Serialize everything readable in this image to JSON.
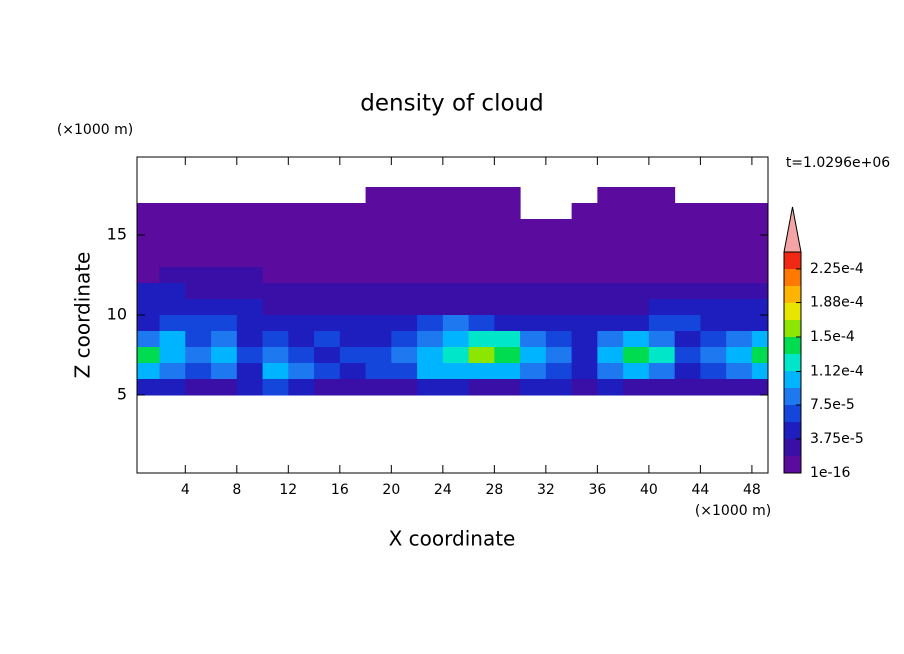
{
  "chart_data": {
    "type": "contour",
    "title": "density of cloud",
    "x_label": "X coordinate",
    "y_label": "Z coordinate",
    "x_unit_label": "(×1000 m)",
    "y_unit_label": "(×1000 m)",
    "annotation": "t=1.0296e+06",
    "xlim": [
      0.25,
      49.25
    ],
    "ylim": [
      0.125,
      19.875
    ],
    "xticks": [
      4,
      8,
      12,
      16,
      20,
      24,
      28,
      32,
      36,
      40,
      44,
      48
    ],
    "yticks": [
      5,
      10,
      15
    ],
    "x": [
      1,
      3,
      5,
      7,
      9,
      11,
      13,
      15,
      17,
      19,
      21,
      23,
      25,
      27,
      29,
      31,
      33,
      35,
      37,
      39,
      41,
      43,
      45,
      47,
      49
    ],
    "z": [
      17.5,
      16.5,
      15.5,
      14.5,
      13.5,
      12.5,
      11.5,
      10.5,
      9.5,
      8.5,
      7.5,
      6.5,
      5.5
    ],
    "values": [
      [
        null,
        null,
        null,
        null,
        null,
        null,
        null,
        null,
        null,
        5e-06,
        5e-06,
        5e-06,
        5e-06,
        5e-06,
        5e-06,
        null,
        null,
        null,
        5e-06,
        5e-06,
        5e-06,
        null,
        null,
        null,
        null
      ],
      [
        5e-06,
        5e-06,
        5e-06,
        5e-06,
        5e-06,
        5e-06,
        5e-06,
        5e-06,
        5e-06,
        5e-06,
        5e-06,
        5e-06,
        5e-06,
        5e-06,
        5e-06,
        null,
        null,
        5e-06,
        5e-06,
        5e-06,
        5e-06,
        5e-06,
        5e-06,
        5e-06,
        5e-06
      ],
      [
        5e-06,
        5e-06,
        5e-06,
        5e-06,
        5e-06,
        5e-06,
        5e-06,
        5e-06,
        5e-06,
        5e-06,
        5e-06,
        5e-06,
        5e-06,
        5e-06,
        5e-06,
        5e-06,
        5e-06,
        5e-06,
        5e-06,
        5e-06,
        5e-06,
        5e-06,
        5e-06,
        5e-06,
        5e-06
      ],
      [
        5e-06,
        5e-06,
        5e-06,
        5e-06,
        5e-06,
        5e-06,
        5e-06,
        5e-06,
        5e-06,
        5e-06,
        5e-06,
        5e-06,
        5e-06,
        5e-06,
        5e-06,
        5e-06,
        5e-06,
        5e-06,
        5e-06,
        5e-06,
        5e-06,
        5e-06,
        5e-06,
        5e-06,
        5e-06
      ],
      [
        5e-06,
        5e-06,
        5e-06,
        5e-06,
        5e-06,
        5e-06,
        5e-06,
        5e-06,
        5e-06,
        5e-06,
        5e-06,
        5e-06,
        5e-06,
        5e-06,
        5e-06,
        5e-06,
        5e-06,
        5e-06,
        5e-06,
        5e-06,
        5e-06,
        5e-06,
        5e-06,
        5e-06,
        5e-06
      ],
      [
        5e-06,
        2.5e-05,
        2.5e-05,
        2.5e-05,
        2.5e-05,
        5e-06,
        5e-06,
        5e-06,
        5e-06,
        5e-06,
        5e-06,
        5e-06,
        5e-06,
        5e-06,
        5e-06,
        5e-06,
        5e-06,
        5e-06,
        5e-06,
        5e-06,
        5e-06,
        5e-06,
        5e-06,
        5e-06,
        5e-06
      ],
      [
        4.5e-05,
        4.5e-05,
        2.5e-05,
        2.5e-05,
        2.5e-05,
        2.5e-05,
        2.5e-05,
        2.5e-05,
        2.5e-05,
        2.5e-05,
        2.5e-05,
        2.5e-05,
        2.5e-05,
        2.5e-05,
        2.5e-05,
        2.5e-05,
        2.5e-05,
        2.5e-05,
        2.5e-05,
        2.5e-05,
        2.5e-05,
        2.5e-05,
        2.5e-05,
        2.5e-05,
        2.5e-05
      ],
      [
        4.5e-05,
        4.5e-05,
        4.5e-05,
        4.5e-05,
        4.5e-05,
        2.5e-05,
        2.5e-05,
        2.5e-05,
        2.5e-05,
        2.5e-05,
        2.5e-05,
        2.5e-05,
        2.5e-05,
        2.5e-05,
        2.5e-05,
        2.5e-05,
        2.5e-05,
        2.5e-05,
        2.5e-05,
        2.5e-05,
        4.5e-05,
        4.5e-05,
        4.5e-05,
        4.5e-05,
        4.5e-05
      ],
      [
        4.5e-05,
        6e-05,
        6e-05,
        6e-05,
        4.5e-05,
        4.5e-05,
        4.5e-05,
        4.5e-05,
        4.5e-05,
        4.5e-05,
        4.5e-05,
        6e-05,
        8e-05,
        6e-05,
        4.5e-05,
        4.5e-05,
        4.5e-05,
        4.5e-05,
        4.5e-05,
        4.5e-05,
        6e-05,
        6e-05,
        4.5e-05,
        4.5e-05,
        4.5e-05
      ],
      [
        8e-05,
        0.0001,
        6e-05,
        8e-05,
        4.5e-05,
        6e-05,
        4.5e-05,
        6e-05,
        4.5e-05,
        4.5e-05,
        6e-05,
        8e-05,
        0.0001,
        0.00012,
        0.00012,
        8e-05,
        6e-05,
        4.5e-05,
        8e-05,
        0.0001,
        8e-05,
        4.5e-05,
        6e-05,
        8e-05,
        0.0001
      ],
      [
        0.00014,
        0.0001,
        8e-05,
        0.0001,
        6e-05,
        8e-05,
        6e-05,
        4.5e-05,
        6e-05,
        6e-05,
        8e-05,
        0.0001,
        0.00012,
        0.000165,
        0.00014,
        0.0001,
        8e-05,
        4.5e-05,
        0.0001,
        0.00014,
        0.00012,
        6e-05,
        8e-05,
        0.0001,
        0.00014
      ],
      [
        0.0001,
        8e-05,
        6e-05,
        8e-05,
        4.5e-05,
        0.0001,
        8e-05,
        6e-05,
        4.5e-05,
        6e-05,
        6e-05,
        0.0001,
        0.0001,
        0.0001,
        0.0001,
        8e-05,
        6e-05,
        4.5e-05,
        8e-05,
        0.0001,
        8e-05,
        4.5e-05,
        6e-05,
        8e-05,
        0.0001
      ],
      [
        4.5e-05,
        4.5e-05,
        2.5e-05,
        2.5e-05,
        4.5e-05,
        6e-05,
        4.5e-05,
        2.5e-05,
        2.5e-05,
        2.5e-05,
        2.5e-05,
        4.5e-05,
        4.5e-05,
        2.5e-05,
        2.5e-05,
        4.5e-05,
        4.5e-05,
        2.5e-05,
        4.5e-05,
        2.5e-05,
        2.5e-05,
        2.5e-05,
        2.5e-05,
        2.5e-05,
        2.5e-05
      ]
    ],
    "colorbar": {
      "ticks": [
        {
          "value": 1e-16,
          "label": "1e-16"
        },
        {
          "value": 3.75e-05,
          "label": "3.75e-5"
        },
        {
          "value": 7.5e-05,
          "label": "7.5e-5"
        },
        {
          "value": 0.000112,
          "label": "1.12e-4"
        },
        {
          "value": 0.00015,
          "label": "1.5e-4"
        },
        {
          "value": 0.000188,
          "label": "1.88e-4"
        },
        {
          "value": 0.000225,
          "label": "2.25e-4"
        }
      ],
      "colors": [
        "#5b0b9e",
        "#3a0fa8",
        "#1e1ebe",
        "#1446dc",
        "#1e78f0",
        "#00b4ff",
        "#00e6c8",
        "#00dc50",
        "#8ce600",
        "#e6e600",
        "#ffb400",
        "#ff7800",
        "#f02814"
      ],
      "extend_color": "#f4a4a4"
    }
  }
}
